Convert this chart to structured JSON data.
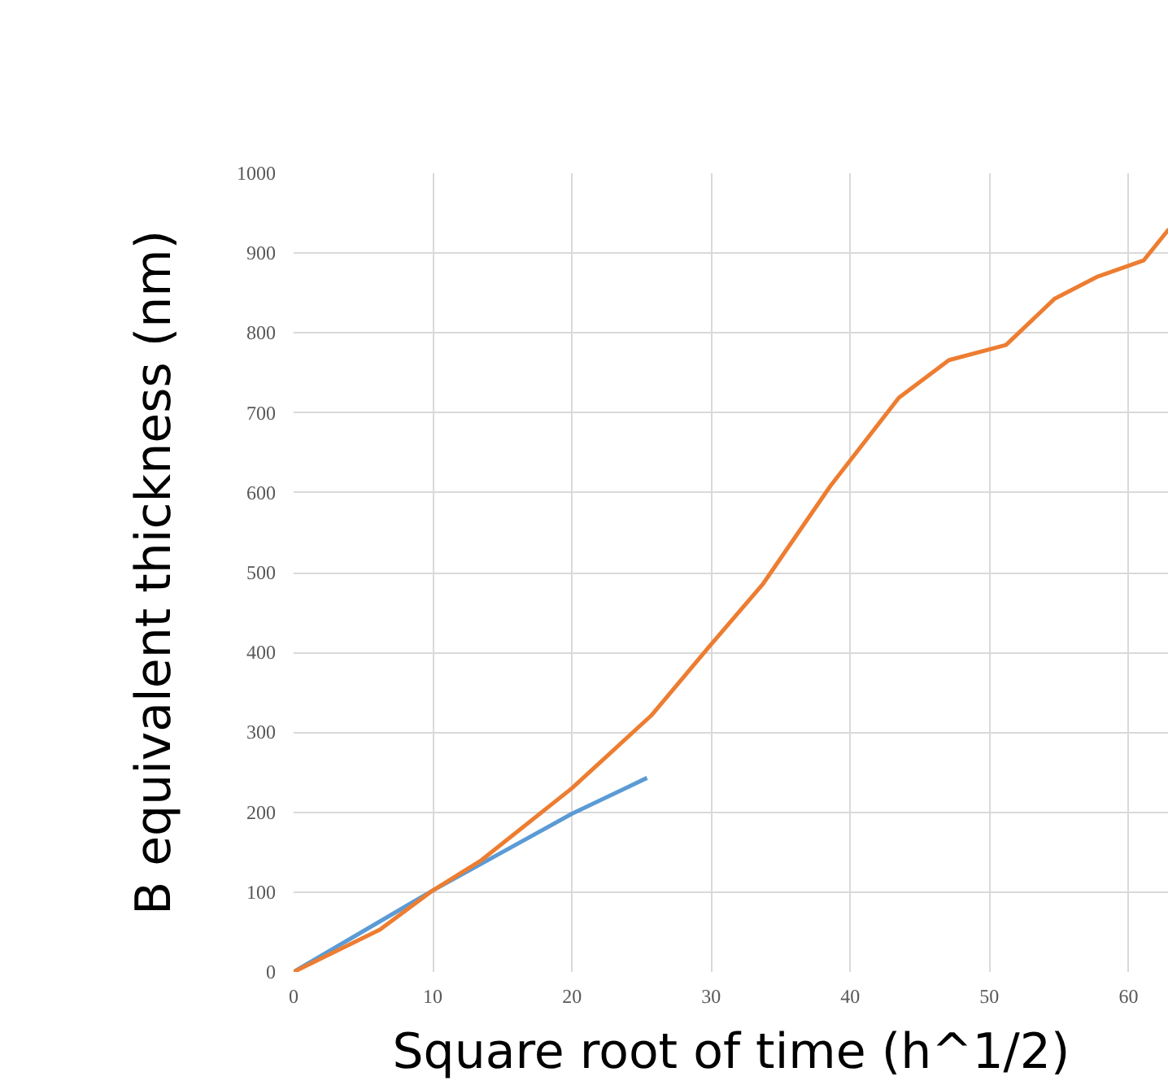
{
  "chart_data": {
    "type": "line",
    "xlabel": "Square root of time (h^1/2)",
    "ylabel": "B equivalent thickness (nm)",
    "xlim": [
      0,
      62.9
    ],
    "ylim": [
      0,
      1000
    ],
    "xticks": [
      0,
      10,
      20,
      30,
      40,
      50,
      60
    ],
    "yticks": [
      0,
      100,
      200,
      300,
      400,
      500,
      600,
      700,
      800,
      900,
      1000
    ],
    "grid": true,
    "marker": "none",
    "line_style": "solid",
    "series": [
      {
        "color": "#5b9bd5",
        "x": [
          0,
          10,
          20,
          25.4
        ],
        "values": [
          0,
          102,
          198,
          243
        ]
      },
      {
        "color": "#ed7d31",
        "x": [
          0,
          6.2,
          10,
          13.5,
          20,
          25.7,
          29.8,
          33.7,
          38.6,
          43.5,
          47.1,
          51.2,
          54.7,
          57.7,
          61.1,
          62.9
        ],
        "values": [
          0,
          53,
          102,
          140,
          230,
          321,
          406,
          485,
          609,
          719,
          766,
          785,
          843,
          870,
          891,
          930
        ]
      }
    ]
  }
}
